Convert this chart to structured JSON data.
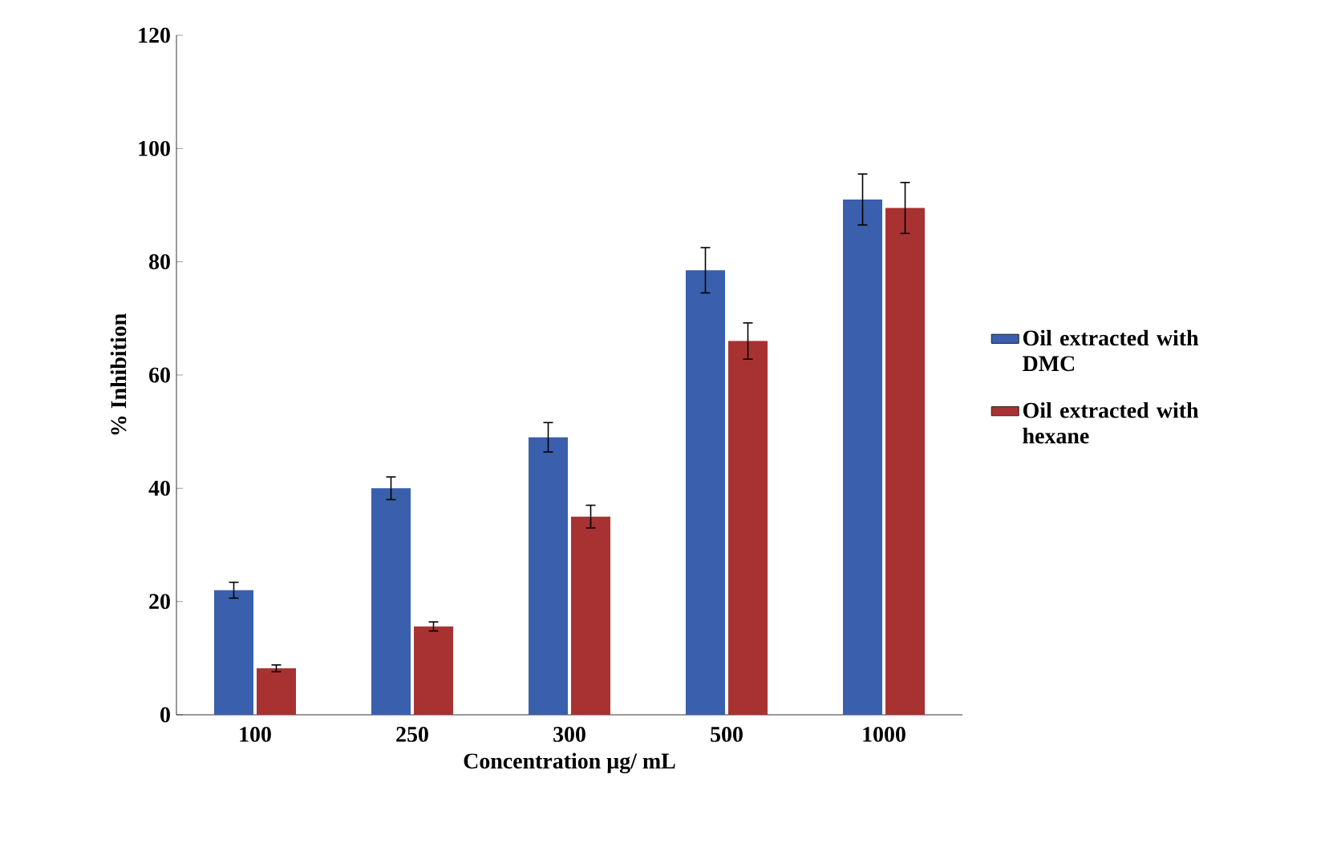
{
  "chart_data": {
    "type": "bar",
    "xlabel": "Concentration µg/ mL",
    "ylabel": "% Inhibition",
    "categories": [
      "100",
      "250",
      "300",
      "500",
      "1000"
    ],
    "series": [
      {
        "name": "Oil extracted with DMC",
        "color": "#3a5fad",
        "values": [
          22,
          40,
          49,
          78.5,
          91
        ],
        "errors": [
          1.4,
          2,
          2.6,
          4,
          4.5
        ]
      },
      {
        "name": "Oil extracted with hexane",
        "color": "#a83232",
        "values": [
          8.2,
          15.6,
          35,
          66,
          89.5
        ],
        "errors": [
          0.6,
          0.8,
          2,
          3.2,
          4.5
        ]
      }
    ],
    "ylim": [
      0,
      120
    ],
    "yticks": [
      0,
      20,
      40,
      60,
      80,
      100,
      120
    ],
    "legend": "right"
  }
}
